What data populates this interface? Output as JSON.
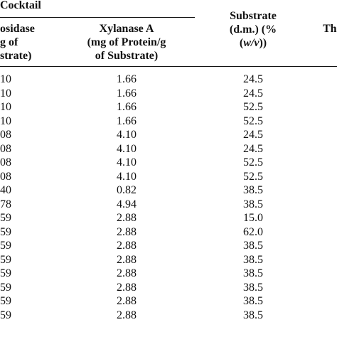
{
  "header": {
    "group_title": "Cocktail",
    "col0": [
      "osidase",
      "g of",
      "strate)"
    ],
    "col1": [
      "Xylanase A",
      "(mg of Protein/g",
      "of Substrate)"
    ],
    "col2_line1": "Substrate",
    "col2_line2": "(d.m.) (%",
    "col2_line3_italic": "w/v",
    "col2_line3_open": "(",
    "col2_line3_close": "))",
    "col3_partial": "Th"
  },
  "rows": [
    [
      "10",
      "1.66",
      "24.5"
    ],
    [
      "10",
      "1.66",
      "24.5"
    ],
    [
      "10",
      "1.66",
      "52.5"
    ],
    [
      "10",
      "1.66",
      "52.5"
    ],
    [
      "08",
      "4.10",
      "24.5"
    ],
    [
      "08",
      "4.10",
      "24.5"
    ],
    [
      "08",
      "4.10",
      "52.5"
    ],
    [
      "08",
      "4.10",
      "52.5"
    ],
    [
      "40",
      "0.82",
      "38.5"
    ],
    [
      "78",
      "4.94",
      "38.5"
    ],
    [
      "59",
      "2.88",
      "15.0"
    ],
    [
      "59",
      "2.88",
      "62.0"
    ],
    [
      "59",
      "2.88",
      "38.5"
    ],
    [
      "59",
      "2.88",
      "38.5"
    ],
    [
      "59",
      "2.88",
      "38.5"
    ],
    [
      "59",
      "2.88",
      "38.5"
    ],
    [
      "59",
      "2.88",
      "38.5"
    ],
    [
      "59",
      "2.88",
      "38.5"
    ]
  ]
}
